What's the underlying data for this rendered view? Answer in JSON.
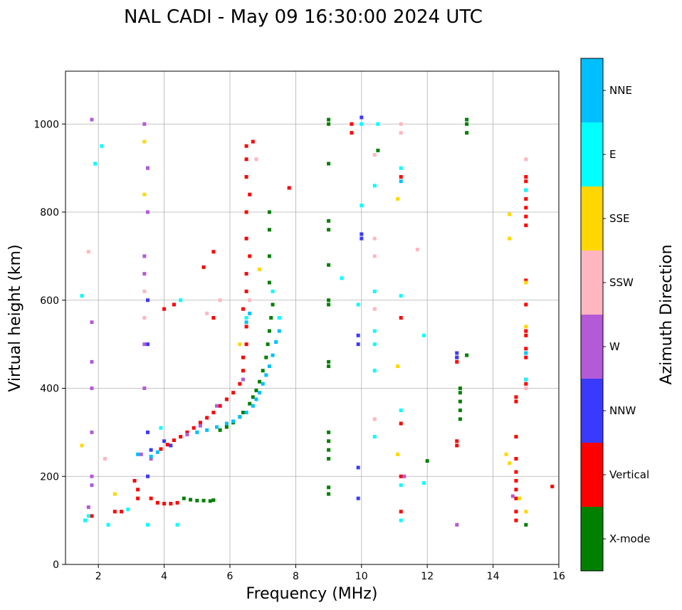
{
  "chart_data": {
    "type": "scatter",
    "title": "NAL CADI - May 09 16:30:00 2024 UTC",
    "xlabel": "Frequency (MHz)",
    "ylabel": "Virtual height (km)",
    "xlim": [
      1,
      16
    ],
    "ylim": [
      0,
      1120
    ],
    "xticks": [
      2,
      4,
      6,
      8,
      10,
      12,
      14,
      16
    ],
    "yticks": [
      0,
      200,
      400,
      600,
      800,
      1000
    ],
    "grid": true,
    "colorbar": {
      "label": "Azimuth Direction",
      "categories": [
        "X-mode",
        "Vertical",
        "NNW",
        "W",
        "SSW",
        "SSE",
        "E",
        "NNE"
      ],
      "colors": [
        "#008000",
        "#ff0000",
        "#3a3aff",
        "#b35ad6",
        "#ffb6c1",
        "#ffd700",
        "#00ffff",
        "#00bfff"
      ]
    },
    "series": [
      {
        "name": "X-mode",
        "points": [
          [
            4.6,
            150
          ],
          [
            4.8,
            147
          ],
          [
            5.0,
            145
          ],
          [
            5.2,
            145
          ],
          [
            5.4,
            144
          ],
          [
            5.5,
            146
          ],
          [
            5.7,
            305
          ],
          [
            5.9,
            312
          ],
          [
            6.1,
            322
          ],
          [
            6.3,
            335
          ],
          [
            6.4,
            345
          ],
          [
            6.6,
            365
          ],
          [
            6.7,
            380
          ],
          [
            6.8,
            395
          ],
          [
            6.9,
            415
          ],
          [
            7.0,
            440
          ],
          [
            7.1,
            470
          ],
          [
            7.15,
            500
          ],
          [
            7.2,
            530
          ],
          [
            7.25,
            560
          ],
          [
            7.3,
            590
          ],
          [
            7.2,
            640
          ],
          [
            7.2,
            700
          ],
          [
            7.2,
            760
          ],
          [
            7.2,
            800
          ],
          [
            9.0,
            160
          ],
          [
            9.0,
            175
          ],
          [
            9.0,
            240
          ],
          [
            9.0,
            260
          ],
          [
            9.0,
            280
          ],
          [
            9.0,
            300
          ],
          [
            9.0,
            450
          ],
          [
            9.0,
            460
          ],
          [
            9.0,
            590
          ],
          [
            9.0,
            600
          ],
          [
            9.0,
            680
          ],
          [
            9.0,
            760
          ],
          [
            9.0,
            780
          ],
          [
            9.0,
            910
          ],
          [
            9.0,
            1000
          ],
          [
            9.0,
            1010
          ],
          [
            13.0,
            330
          ],
          [
            13.0,
            350
          ],
          [
            13.0,
            370
          ],
          [
            13.0,
            390
          ],
          [
            13.0,
            400
          ],
          [
            13.2,
            980
          ],
          [
            13.2,
            1000
          ],
          [
            13.2,
            1010
          ],
          [
            15.0,
            90
          ],
          [
            12.0,
            235
          ],
          [
            13.2,
            475
          ],
          [
            10.5,
            940
          ]
        ]
      },
      {
        "name": "Vertical",
        "points": [
          [
            3.2,
            150
          ],
          [
            3.2,
            170
          ],
          [
            3.1,
            190
          ],
          [
            3.6,
            150
          ],
          [
            3.8,
            140
          ],
          [
            4.0,
            138
          ],
          [
            4.2,
            138
          ],
          [
            4.4,
            140
          ],
          [
            3.9,
            262
          ],
          [
            4.1,
            272
          ],
          [
            4.3,
            282
          ],
          [
            4.5,
            290
          ],
          [
            4.7,
            300
          ],
          [
            4.9,
            310
          ],
          [
            5.1,
            322
          ],
          [
            5.3,
            333
          ],
          [
            5.5,
            345
          ],
          [
            5.7,
            360
          ],
          [
            5.9,
            375
          ],
          [
            6.1,
            390
          ],
          [
            6.3,
            410
          ],
          [
            6.4,
            440
          ],
          [
            6.4,
            470
          ],
          [
            6.5,
            500
          ],
          [
            6.5,
            540
          ],
          [
            6.4,
            580
          ],
          [
            6.5,
            620
          ],
          [
            6.5,
            660
          ],
          [
            6.6,
            700
          ],
          [
            6.5,
            740
          ],
          [
            6.5,
            800
          ],
          [
            6.6,
            840
          ],
          [
            6.5,
            880
          ],
          [
            6.5,
            920
          ],
          [
            6.5,
            950
          ],
          [
            6.7,
            960
          ],
          [
            7.8,
            855
          ],
          [
            5.5,
            710
          ],
          [
            5.2,
            675
          ],
          [
            5.5,
            560
          ],
          [
            4.3,
            590
          ],
          [
            4.0,
            580
          ],
          [
            9.7,
            980
          ],
          [
            9.7,
            1000
          ],
          [
            11.2,
            120
          ],
          [
            11.2,
            200
          ],
          [
            11.2,
            320
          ],
          [
            11.2,
            560
          ],
          [
            11.2,
            880
          ],
          [
            12.9,
            280
          ],
          [
            12.9,
            270
          ],
          [
            12.9,
            460
          ],
          [
            12.9,
            470
          ],
          [
            14.7,
            100
          ],
          [
            14.7,
            120
          ],
          [
            14.7,
            150
          ],
          [
            14.7,
            170
          ],
          [
            14.7,
            190
          ],
          [
            14.7,
            210
          ],
          [
            14.7,
            240
          ],
          [
            14.7,
            290
          ],
          [
            14.7,
            370
          ],
          [
            14.7,
            380
          ],
          [
            15.0,
            410
          ],
          [
            15.0,
            420
          ],
          [
            15.0,
            470
          ],
          [
            15.0,
            490
          ],
          [
            15.0,
            520
          ],
          [
            15.0,
            530
          ],
          [
            15.0,
            590
          ],
          [
            15.0,
            645
          ],
          [
            15.0,
            770
          ],
          [
            15.0,
            790
          ],
          [
            15.0,
            810
          ],
          [
            15.0,
            830
          ],
          [
            15.0,
            850
          ],
          [
            15.0,
            870
          ],
          [
            15.0,
            880
          ],
          [
            15.8,
            177
          ],
          [
            2.5,
            120
          ],
          [
            2.7,
            120
          ],
          [
            1.8,
            110
          ]
        ]
      },
      {
        "name": "NNW",
        "points": [
          [
            3.5,
            200
          ],
          [
            3.5,
            300
          ],
          [
            3.5,
            500
          ],
          [
            3.5,
            600
          ],
          [
            3.5,
            800
          ],
          [
            3.5,
            900
          ],
          [
            3.6,
            260
          ],
          [
            4.0,
            280
          ],
          [
            4.2,
            270
          ],
          [
            9.9,
            150
          ],
          [
            9.9,
            220
          ],
          [
            9.9,
            500
          ],
          [
            9.9,
            520
          ],
          [
            10.0,
            740
          ],
          [
            10.0,
            750
          ],
          [
            10.0,
            1015
          ],
          [
            12.9,
            480
          ],
          [
            12.9,
            470
          ]
        ]
      },
      {
        "name": "W",
        "points": [
          [
            1.6,
            100
          ],
          [
            1.7,
            130
          ],
          [
            1.8,
            180
          ],
          [
            1.8,
            200
          ],
          [
            1.8,
            300
          ],
          [
            1.8,
            400
          ],
          [
            1.8,
            460
          ],
          [
            1.8,
            550
          ],
          [
            1.8,
            1010
          ],
          [
            3.4,
            400
          ],
          [
            3.4,
            500
          ],
          [
            3.4,
            660
          ],
          [
            3.4,
            700
          ],
          [
            3.5,
            800
          ],
          [
            3.5,
            900
          ],
          [
            3.4,
            1000
          ],
          [
            3.3,
            250
          ],
          [
            3.6,
            240
          ],
          [
            4.7,
            295
          ],
          [
            5.1,
            315
          ],
          [
            5.6,
            360
          ],
          [
            6.4,
            420
          ],
          [
            11.3,
            200
          ],
          [
            12.9,
            90
          ],
          [
            14.6,
            155
          ]
        ]
      },
      {
        "name": "SSW",
        "points": [
          [
            1.7,
            710
          ],
          [
            3.4,
            560
          ],
          [
            3.4,
            620
          ],
          [
            5.3,
            570
          ],
          [
            5.7,
            600
          ],
          [
            6.6,
            600
          ],
          [
            6.8,
            920
          ],
          [
            10.4,
            330
          ],
          [
            10.4,
            580
          ],
          [
            10.4,
            700
          ],
          [
            10.4,
            740
          ],
          [
            10.4,
            930
          ],
          [
            11.2,
            980
          ],
          [
            11.2,
            1000
          ],
          [
            11.7,
            715
          ],
          [
            15.0,
            400
          ],
          [
            15.0,
            920
          ],
          [
            2.2,
            240
          ]
        ]
      },
      {
        "name": "SSE",
        "points": [
          [
            1.5,
            270
          ],
          [
            2.5,
            160
          ],
          [
            3.4,
            840
          ],
          [
            3.4,
            960
          ],
          [
            6.3,
            500
          ],
          [
            6.9,
            670
          ],
          [
            11.1,
            250
          ],
          [
            11.1,
            450
          ],
          [
            11.1,
            830
          ],
          [
            14.4,
            250
          ],
          [
            14.5,
            230
          ],
          [
            14.5,
            740
          ],
          [
            14.5,
            795
          ],
          [
            15.0,
            540
          ],
          [
            15.0,
            640
          ],
          [
            15.0,
            120
          ],
          [
            14.8,
            150
          ]
        ]
      },
      {
        "name": "E",
        "points": [
          [
            1.5,
            610
          ],
          [
            1.6,
            100
          ],
          [
            1.7,
            110
          ],
          [
            2.3,
            90
          ],
          [
            2.9,
            125
          ],
          [
            3.5,
            90
          ],
          [
            3.9,
            310
          ],
          [
            4.4,
            90
          ],
          [
            4.5,
            600
          ],
          [
            6.5,
            560
          ],
          [
            7.3,
            620
          ],
          [
            7.5,
            560
          ],
          [
            9.9,
            590
          ],
          [
            10.0,
            815
          ],
          [
            10.0,
            1000
          ],
          [
            10.4,
            290
          ],
          [
            10.4,
            440
          ],
          [
            10.4,
            500
          ],
          [
            10.4,
            530
          ],
          [
            10.4,
            620
          ],
          [
            10.4,
            860
          ],
          [
            10.5,
            1000
          ],
          [
            11.2,
            100
          ],
          [
            11.2,
            180
          ],
          [
            11.2,
            350
          ],
          [
            11.2,
            610
          ],
          [
            11.2,
            900
          ],
          [
            11.9,
            185
          ],
          [
            11.9,
            520
          ],
          [
            15.0,
            420
          ],
          [
            15.0,
            850
          ],
          [
            2.1,
            950
          ],
          [
            1.9,
            910
          ],
          [
            9.4,
            650
          ]
        ]
      },
      {
        "name": "NNE",
        "points": [
          [
            3.2,
            250
          ],
          [
            3.6,
            245
          ],
          [
            3.8,
            255
          ],
          [
            5.0,
            300
          ],
          [
            5.3,
            305
          ],
          [
            5.6,
            312
          ],
          [
            5.9,
            320
          ],
          [
            6.1,
            325
          ],
          [
            6.3,
            335
          ],
          [
            6.5,
            345
          ],
          [
            6.7,
            360
          ],
          [
            6.8,
            375
          ],
          [
            6.9,
            390
          ],
          [
            7.0,
            410
          ],
          [
            7.1,
            430
          ],
          [
            7.2,
            450
          ],
          [
            7.3,
            475
          ],
          [
            7.4,
            505
          ],
          [
            7.5,
            530
          ],
          [
            6.5,
            550
          ],
          [
            6.6,
            570
          ],
          [
            11.2,
            870
          ],
          [
            15.0,
            480
          ]
        ]
      }
    ]
  }
}
